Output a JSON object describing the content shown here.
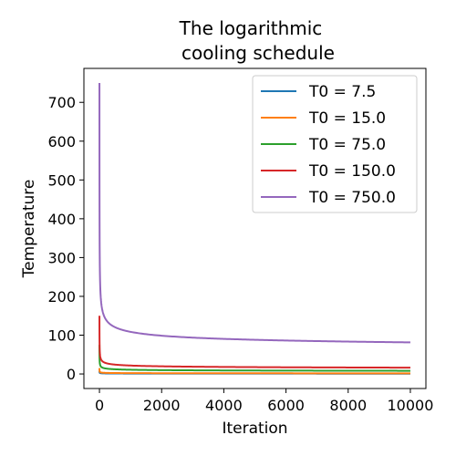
{
  "chart_data": {
    "type": "line",
    "title_lines": [
      "The logarithmic",
      "cooling schedule"
    ],
    "xlabel": "Iteration",
    "ylabel": "Temperature",
    "xlim": [
      -500,
      10500
    ],
    "ylim": [
      -37.5,
      787.5
    ],
    "xticks": [
      0,
      2000,
      4000,
      6000,
      8000,
      10000
    ],
    "xtick_labels": [
      "0",
      "2000",
      "4000",
      "6000",
      "8000",
      "10000"
    ],
    "yticks": [
      0,
      100,
      200,
      300,
      400,
      500,
      600,
      700
    ],
    "ytick_labels": [
      "0",
      "100",
      "200",
      "300",
      "400",
      "500",
      "600",
      "700"
    ],
    "grid": false,
    "legend_position": "top-right",
    "schedule": "T(k) = T0 / ln(k + e)",
    "x_range": [
      0,
      10000
    ],
    "series": [
      {
        "name": "T0 = 7.5",
        "t0": 7.5,
        "color": "#1f77b4"
      },
      {
        "name": "T0 = 15.0",
        "t0": 15.0,
        "color": "#ff7f0e"
      },
      {
        "name": "T0 = 75.0",
        "t0": 75.0,
        "color": "#2ca02c"
      },
      {
        "name": "T0 = 150.0",
        "t0": 150.0,
        "color": "#d62728"
      },
      {
        "name": "T0 = 750.0",
        "t0": 750.0,
        "color": "#9467bd"
      }
    ]
  }
}
